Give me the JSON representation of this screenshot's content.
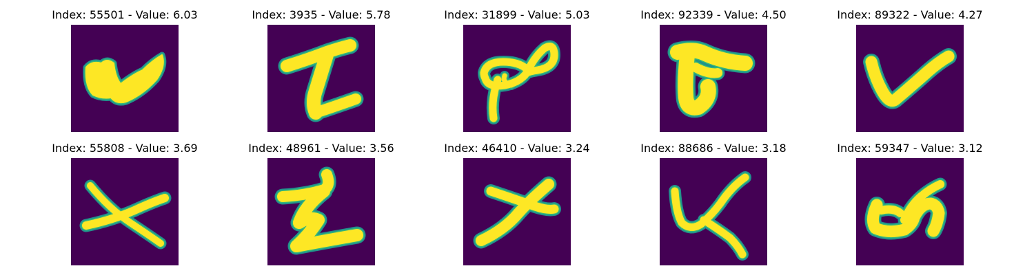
{
  "panels": [
    {
      "title": "Index: 55501 - Value: 6.03",
      "glyph": "w-blob"
    },
    {
      "title": "Index: 3935 - Value: 5.78",
      "glyph": "I-shape"
    },
    {
      "title": "Index: 31899 - Value: 5.03",
      "glyph": "loop-infinity"
    },
    {
      "title": "Index: 92339 - Value: 4.50",
      "glyph": "T-shape"
    },
    {
      "title": "Index: 89322 - Value: 4.27",
      "glyph": "v-shape"
    },
    {
      "title": "Index: 55808 - Value: 3.69",
      "glyph": "x-cross"
    },
    {
      "title": "Index: 48961 - Value: 3.56",
      "glyph": "z-shape"
    },
    {
      "title": "Index: 46410 - Value: 3.24",
      "glyph": "x-slant"
    },
    {
      "title": "Index: 88686 - Value: 3.18",
      "glyph": "k-curve"
    },
    {
      "title": "Index: 59347 - Value: 3.12",
      "glyph": "u-curl"
    }
  ],
  "colors": {
    "background": "#440154",
    "stroke": "#fde725",
    "edge": "#35b779",
    "edge2": "#21918c"
  }
}
